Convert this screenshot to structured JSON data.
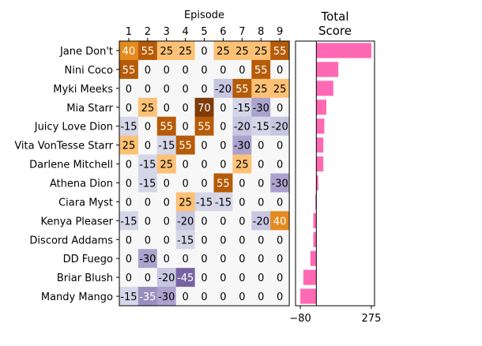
{
  "chart_data": [
    {
      "type": "heatmap",
      "xlabel": "Episode",
      "x_position": "top",
      "columns": [
        "1",
        "2",
        "3",
        "4",
        "5",
        "6",
        "7",
        "8",
        "9"
      ],
      "rows": [
        "Jane Don't",
        "Nini Coco",
        "Myki Meeks",
        "Mia Starr",
        "Juicy Love Dion",
        "Vita VonTesse Starr",
        "Darlene Mitchell",
        "Athena Dion",
        "Ciara Myst",
        "Kenya Pleaser",
        "Discord Addams",
        "DD Fuego",
        "Briar Blush",
        "Mandy Mango"
      ],
      "values": [
        [
          40,
          55,
          25,
          25,
          0,
          25,
          25,
          25,
          55
        ],
        [
          55,
          0,
          0,
          0,
          0,
          0,
          0,
          55,
          0
        ],
        [
          0,
          0,
          0,
          0,
          0,
          -20,
          55,
          25,
          25
        ],
        [
          0,
          25,
          0,
          0,
          70,
          0,
          -15,
          -30,
          0
        ],
        [
          -15,
          0,
          55,
          0,
          55,
          0,
          -20,
          -15,
          -20
        ],
        [
          25,
          0,
          -15,
          55,
          0,
          0,
          -30,
          0,
          0
        ],
        [
          0,
          -15,
          25,
          0,
          0,
          0,
          25,
          0,
          0
        ],
        [
          0,
          -15,
          0,
          0,
          0,
          55,
          0,
          0,
          -30
        ],
        [
          0,
          0,
          0,
          25,
          -15,
          -15,
          0,
          0,
          0
        ],
        [
          -15,
          0,
          0,
          -20,
          0,
          0,
          0,
          -20,
          40
        ],
        [
          0,
          0,
          0,
          -15,
          0,
          0,
          0,
          0,
          0
        ],
        [
          0,
          -30,
          0,
          0,
          0,
          0,
          0,
          0,
          0
        ],
        [
          0,
          0,
          -20,
          -45,
          0,
          0,
          0,
          0,
          0
        ],
        [
          -15,
          -35,
          -30,
          0,
          0,
          0,
          0,
          0,
          0
        ]
      ],
      "colormap": "PuOr (orange positive, purple negative)",
      "vmin": -70,
      "vmax": 70
    },
    {
      "type": "bar",
      "orientation": "horizontal",
      "title": "Total\nScore",
      "title_lines": [
        "Total",
        "Score"
      ],
      "categories": [
        "Jane Don't",
        "Nini Coco",
        "Myki Meeks",
        "Mia Starr",
        "Juicy Love Dion",
        "Vita VonTesse Starr",
        "Darlene Mitchell",
        "Athena Dion",
        "Ciara Myst",
        "Kenya Pleaser",
        "Discord Addams",
        "DD Fuego",
        "Briar Blush",
        "Mandy Mango"
      ],
      "values": [
        275,
        110,
        85,
        50,
        40,
        35,
        35,
        10,
        -5,
        -15,
        -15,
        -30,
        -65,
        -80
      ],
      "xticks": [
        "-80",
        "275"
      ],
      "xlim": [
        -104,
        291
      ],
      "color": "#ff69b4",
      "zero_line": true
    }
  ]
}
